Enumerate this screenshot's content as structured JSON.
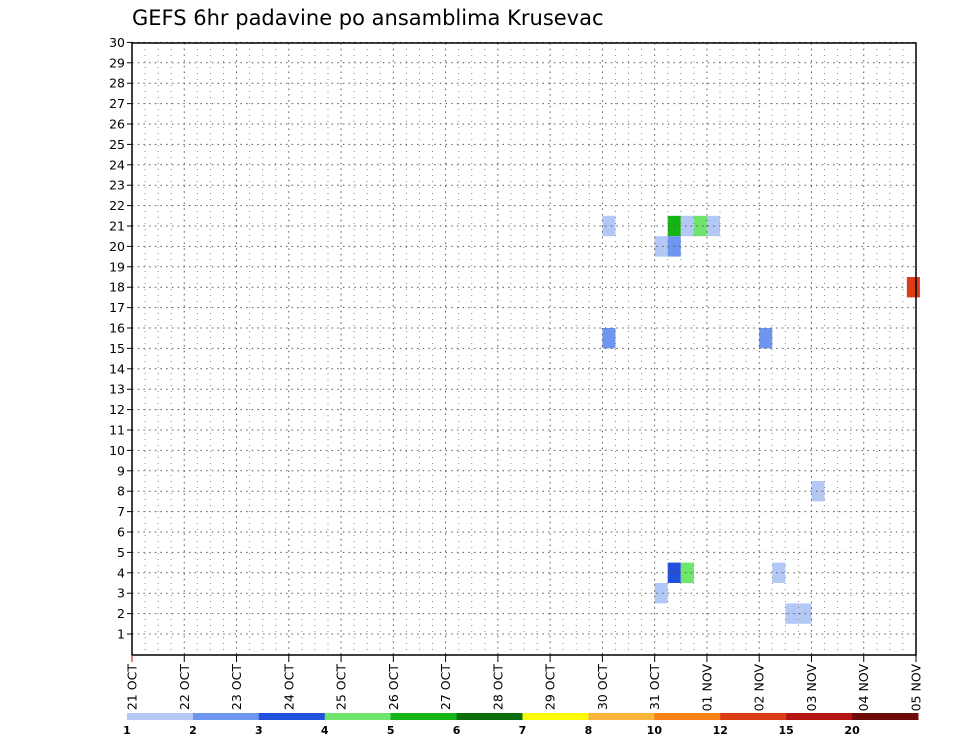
{
  "chart_data": {
    "type": "heatmap",
    "title": "GEFS 6hr padavine po ansamblima Krusevac",
    "xlabel": "",
    "ylabel": "",
    "x_ticks": [
      "21 OCT",
      "22 OCT",
      "23 OCT",
      "24 OCT",
      "25 OCT",
      "26 OCT",
      "27 OCT",
      "28 OCT",
      "29 OCT",
      "30 OCT",
      "31 OCT",
      "01 NOV",
      "02 NOV",
      "03 NOV",
      "04 NOV",
      "05 NOV"
    ],
    "y_ticks": [
      "1",
      "2",
      "3",
      "4",
      "5",
      "6",
      "7",
      "8",
      "9",
      "10",
      "11",
      "12",
      "13",
      "14",
      "15",
      "16",
      "17",
      "18",
      "19",
      "20",
      "21",
      "22",
      "23",
      "24",
      "25",
      "26",
      "27",
      "28",
      "29",
      "30"
    ],
    "y_range": [
      1,
      30
    ],
    "x_range_days": [
      0,
      15
    ],
    "grid": true,
    "colorbar": {
      "levels": [
        "1",
        "2",
        "3",
        "4",
        "5",
        "6",
        "7",
        "8",
        "10",
        "12",
        "15",
        "20"
      ],
      "colors": [
        "#b4c8f5",
        "#6e96f0",
        "#2050dc",
        "#6ee66e",
        "#14b414",
        "#0a6e0a",
        "#fafa0a",
        "#fab43c",
        "#fa8214",
        "#dc3c14",
        "#b41414",
        "#6e0a0a"
      ]
    },
    "cells": [
      {
        "member": 21,
        "day": 9.125,
        "color": "#b4c8f5"
      },
      {
        "member": 15.5,
        "day": 9.125,
        "color": "#6e96f0"
      },
      {
        "member": 21,
        "day": 10.375,
        "color": "#14b414"
      },
      {
        "member": 21,
        "day": 10.625,
        "color": "#b4c8f5"
      },
      {
        "member": 21,
        "day": 10.875,
        "color": "#6ee66e"
      },
      {
        "member": 21,
        "day": 11.125,
        "color": "#b4c8f5"
      },
      {
        "member": 20,
        "day": 10.125,
        "color": "#b4c8f5"
      },
      {
        "member": 20,
        "day": 10.375,
        "color": "#6e96f0"
      },
      {
        "member": 15.5,
        "day": 12.125,
        "color": "#6e96f0"
      },
      {
        "member": 18,
        "day": 14.95,
        "color": "#dc3c14"
      },
      {
        "member": 8,
        "day": 13.125,
        "color": "#b4c8f5"
      },
      {
        "member": 4,
        "day": 10.375,
        "color": "#2050dc"
      },
      {
        "member": 4,
        "day": 10.625,
        "color": "#6ee66e"
      },
      {
        "member": 4,
        "day": 12.375,
        "color": "#b4c8f5"
      },
      {
        "member": 3,
        "day": 10.125,
        "color": "#b4c8f5"
      },
      {
        "member": 2,
        "day": 12.625,
        "color": "#b4c8f5"
      },
      {
        "member": 2,
        "day": 12.875,
        "color": "#b4c8f5"
      }
    ]
  }
}
